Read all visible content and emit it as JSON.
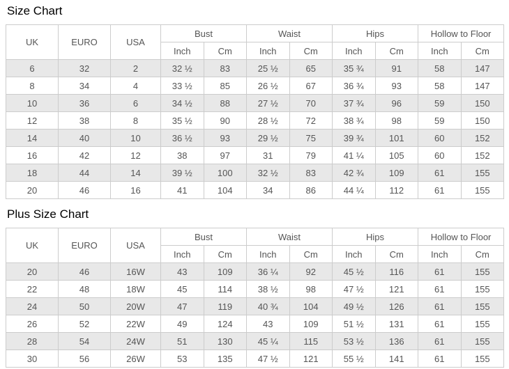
{
  "colors": {
    "border": "#cccccc",
    "stripe_row_bg": "#e8e8e8",
    "cell_text": "#555555",
    "title_text": "#000000",
    "page_bg": "#ffffff"
  },
  "tables": [
    {
      "title": "Size Chart",
      "simple_headers": [
        "UK",
        "EURO",
        "USA"
      ],
      "group_headers": [
        "Bust",
        "Waist",
        "Hips",
        "Hollow to Floor"
      ],
      "unit_labels": [
        "Inch",
        "Cm"
      ],
      "rows": [
        [
          "6",
          "32",
          "2",
          "32 ½",
          "83",
          "25 ½",
          "65",
          "35 ¾",
          "91",
          "58",
          "147"
        ],
        [
          "8",
          "34",
          "4",
          "33 ½",
          "85",
          "26 ½",
          "67",
          "36 ¾",
          "93",
          "58",
          "147"
        ],
        [
          "10",
          "36",
          "6",
          "34 ½",
          "88",
          "27 ½",
          "70",
          "37 ¾",
          "96",
          "59",
          "150"
        ],
        [
          "12",
          "38",
          "8",
          "35 ½",
          "90",
          "28 ½",
          "72",
          "38 ¾",
          "98",
          "59",
          "150"
        ],
        [
          "14",
          "40",
          "10",
          "36 ½",
          "93",
          "29 ½",
          "75",
          "39 ¾",
          "101",
          "60",
          "152"
        ],
        [
          "16",
          "42",
          "12",
          "38",
          "97",
          "31",
          "79",
          "41 ¼",
          "105",
          "60",
          "152"
        ],
        [
          "18",
          "44",
          "14",
          "39 ½",
          "100",
          "32 ½",
          "83",
          "42 ¾",
          "109",
          "61",
          "155"
        ],
        [
          "20",
          "46",
          "16",
          "41",
          "104",
          "34",
          "86",
          "44 ¼",
          "112",
          "61",
          "155"
        ]
      ]
    },
    {
      "title": "Plus Size Chart",
      "simple_headers": [
        "UK",
        "EURO",
        "USA"
      ],
      "group_headers": [
        "Bust",
        "Waist",
        "Hips",
        "Hollow to Floor"
      ],
      "unit_labels": [
        "Inch",
        "Cm"
      ],
      "rows": [
        [
          "20",
          "46",
          "16W",
          "43",
          "109",
          "36 ¼",
          "92",
          "45 ½",
          "116",
          "61",
          "155"
        ],
        [
          "22",
          "48",
          "18W",
          "45",
          "114",
          "38 ½",
          "98",
          "47 ½",
          "121",
          "61",
          "155"
        ],
        [
          "24",
          "50",
          "20W",
          "47",
          "119",
          "40 ¾",
          "104",
          "49 ½",
          "126",
          "61",
          "155"
        ],
        [
          "26",
          "52",
          "22W",
          "49",
          "124",
          "43",
          "109",
          "51 ½",
          "131",
          "61",
          "155"
        ],
        [
          "28",
          "54",
          "24W",
          "51",
          "130",
          "45 ¼",
          "115",
          "53 ½",
          "136",
          "61",
          "155"
        ],
        [
          "30",
          "56",
          "26W",
          "53",
          "135",
          "47 ½",
          "121",
          "55 ½",
          "141",
          "61",
          "155"
        ]
      ]
    }
  ]
}
